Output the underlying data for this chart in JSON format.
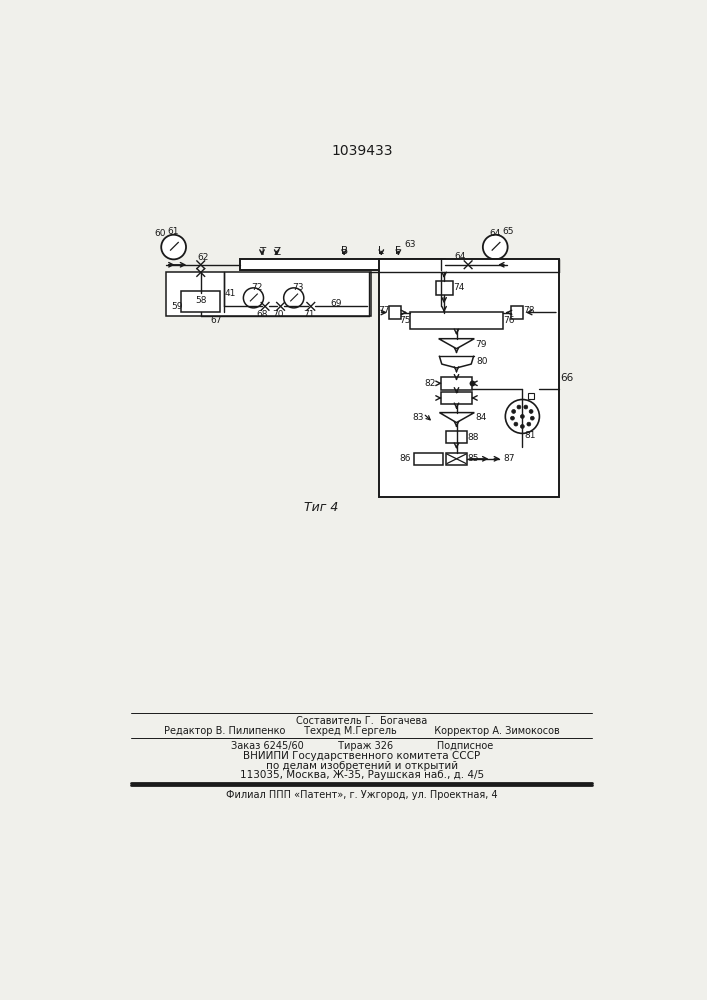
{
  "title": "1039433",
  "fig_label": "Τиг 4",
  "bg_color": "#f0f0eb",
  "line_color": "#1a1a1a",
  "footer_line1": "Составитель Г.  Богачева",
  "footer_line2": "Редактор В. Пилипенко      Техред М.Гергель            Корректор А. Зимокосов",
  "footer_line3": "Заказ 6245/60           Тираж 326              Подписное",
  "footer_line4": "ВНИИПИ Государственного комитета СССР",
  "footer_line5": "по делам изобретений и открытий",
  "footer_line6": "113035, Москва, Ж-35, Раушская наб., д. 4/5",
  "footer_line7": "Филиал ППП «Патент», г. Ужгород, ул. Проектная, 4"
}
